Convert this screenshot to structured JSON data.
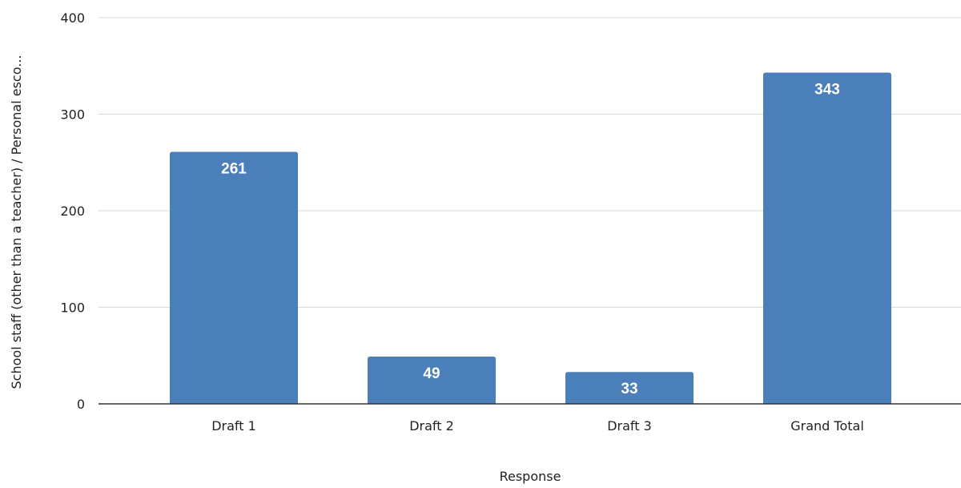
{
  "chart_data": {
    "type": "bar",
    "title": "",
    "xlabel": "Response",
    "ylabel": "School staff (other than a teacher) / Personal esco...",
    "categories": [
      "Draft 1",
      "Draft 2",
      "Draft 3",
      "Grand Total"
    ],
    "values": [
      261,
      49,
      33,
      343
    ],
    "data_labels": [
      "261",
      "49",
      "33",
      "343"
    ],
    "ylim": [
      0,
      400
    ],
    "yticks": [
      0,
      100,
      200,
      300,
      400
    ],
    "grid": true,
    "legend": "none",
    "bar_color": "#4a7fba"
  }
}
